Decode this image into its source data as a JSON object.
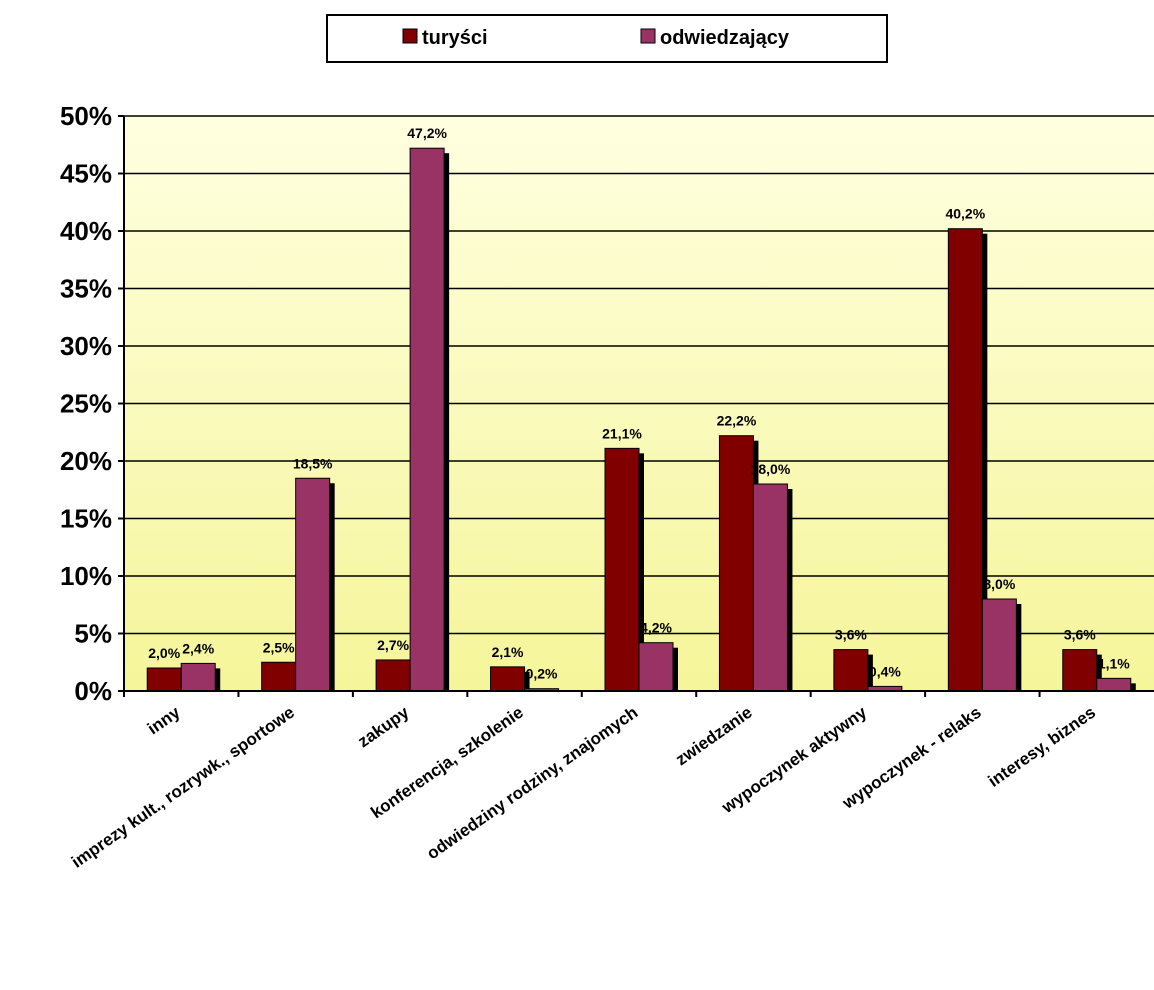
{
  "chart_data": {
    "type": "bar",
    "categories": [
      "inny",
      "imprezy kult., rozrywk., sportowe",
      "zakupy",
      "konferencja, szkolenie",
      "odwiedziny rodziny, znajomych",
      "zwiedzanie",
      "wypoczynek aktywny",
      "wypoczynek - relaks",
      "interesy, biznes"
    ],
    "series": [
      {
        "name": "turyści",
        "color": "#800000",
        "values": [
          2.0,
          2.5,
          2.7,
          2.1,
          21.1,
          22.2,
          3.6,
          40.2,
          3.6
        ],
        "labels": [
          "2,0%",
          "2,5%",
          "2,7%",
          "2,1%",
          "21,1%",
          "22,2%",
          "3,6%",
          "40,2%",
          "3,6%"
        ]
      },
      {
        "name": "odwiedzający",
        "color": "#993366",
        "values": [
          2.4,
          18.5,
          47.2,
          0.2,
          4.2,
          18.0,
          0.4,
          8.0,
          1.1
        ],
        "labels": [
          "2,4%",
          "18,5%",
          "47,2%",
          "0,2%",
          "4,2%",
          "18,0%",
          "0,4%",
          "8,0%",
          "1,1%"
        ]
      }
    ],
    "yticks": [
      "0%",
      "5%",
      "10%",
      "15%",
      "20%",
      "25%",
      "30%",
      "35%",
      "40%",
      "45%",
      "50%"
    ],
    "ylim": [
      0,
      50
    ],
    "grid": true,
    "legend_position": "top-center",
    "plot_background": [
      "#ffffe0",
      "#f5f59a"
    ]
  }
}
